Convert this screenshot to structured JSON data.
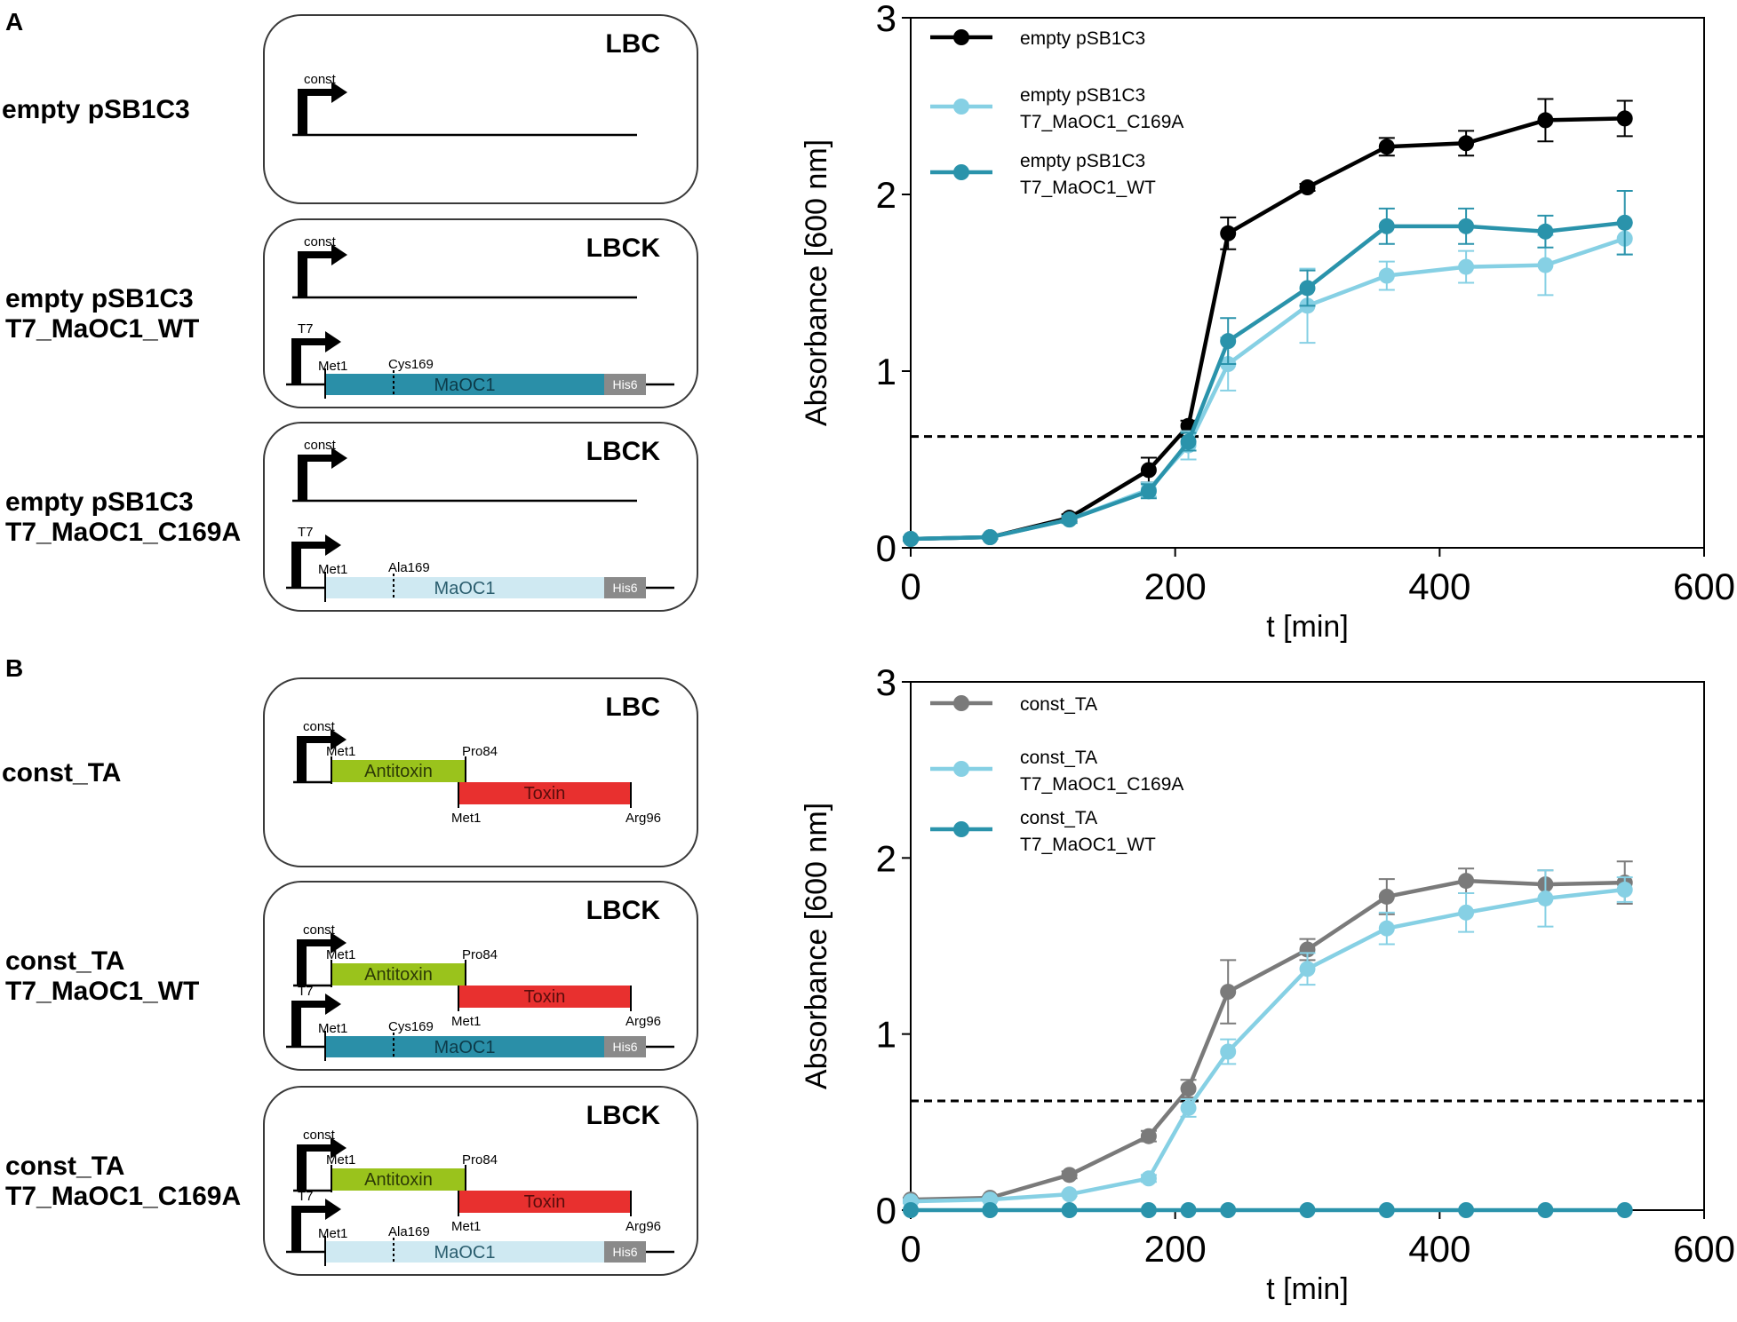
{
  "panels": {
    "A": {
      "letter": "A",
      "constructs": [
        {
          "label_lines": [
            "empty pSB1C3"
          ],
          "medium": "LBC",
          "tracks": [
            {
              "promoter": "const",
              "genes": []
            }
          ]
        },
        {
          "label_lines": [
            "empty pSB1C3",
            "T7_MaOC1_WT"
          ],
          "medium": "LBCK",
          "tracks": [
            {
              "promoter": "const",
              "genes": []
            },
            {
              "promoter": "T7",
              "genes": [
                {
                  "name": "MaOC1",
                  "start": "Met1",
                  "site": "Cys169",
                  "tag": "His6",
                  "color": "#2a8fa8",
                  "text_color": "#0d3b49"
                }
              ]
            }
          ]
        },
        {
          "label_lines": [
            "empty pSB1C3",
            "T7_MaOC1_C169A"
          ],
          "medium": "LBCK",
          "tracks": [
            {
              "promoter": "const",
              "genes": []
            },
            {
              "promoter": "T7",
              "genes": [
                {
                  "name": "MaOC1",
                  "start": "Met1",
                  "site": "Ala169",
                  "tag": "His6",
                  "color": "#cfe9f2",
                  "text_color": "#2a5d6e"
                }
              ]
            }
          ]
        }
      ]
    },
    "B": {
      "letter": "B",
      "constructs": [
        {
          "label_lines": [
            "const_TA"
          ],
          "medium": "LBC",
          "tracks": [
            {
              "promoter": "const",
              "ta": {
                "antitoxin": "Antitoxin",
                "toxin": "Toxin",
                "at_start": "Met1",
                "at_end": "Pro84",
                "tx_start": "Met1",
                "tx_end": "Arg96",
                "at_color": "#9ac31c",
                "tx_color": "#e8302f"
              }
            }
          ]
        },
        {
          "label_lines": [
            "const_TA",
            "T7_MaOC1_WT"
          ],
          "medium": "LBCK",
          "tracks": [
            {
              "promoter": "const",
              "ta": {
                "antitoxin": "Antitoxin",
                "toxin": "Toxin",
                "at_start": "Met1",
                "at_end": "Pro84",
                "tx_start": "Met1",
                "tx_end": "Arg96",
                "at_color": "#9ac31c",
                "tx_color": "#e8302f"
              }
            },
            {
              "promoter": "T7",
              "genes": [
                {
                  "name": "MaOC1",
                  "start": "Met1",
                  "site": "Cys169",
                  "tag": "His6",
                  "color": "#2a8fa8",
                  "text_color": "#0d3b49"
                }
              ]
            }
          ]
        },
        {
          "label_lines": [
            "const_TA",
            "T7_MaOC1_C169A"
          ],
          "medium": "LBCK",
          "tracks": [
            {
              "promoter": "const",
              "ta": {
                "antitoxin": "Antitoxin",
                "toxin": "Toxin",
                "at_start": "Met1",
                "at_end": "Pro84",
                "tx_start": "Met1",
                "tx_end": "Arg96",
                "at_color": "#9ac31c",
                "tx_color": "#e8302f"
              }
            },
            {
              "promoter": "T7",
              "genes": [
                {
                  "name": "MaOC1",
                  "start": "Met1",
                  "site": "Ala169",
                  "tag": "His6",
                  "color": "#cfe9f2",
                  "text_color": "#2a5d6e"
                }
              ]
            }
          ]
        }
      ]
    }
  },
  "chart_data": [
    {
      "type": "line",
      "panel": "A",
      "xlabel": "t [min]",
      "ylabel": "Absorbance [600 nm]",
      "xlim": [
        0,
        600
      ],
      "ylim": [
        0,
        3
      ],
      "xticks": [
        0,
        200,
        400,
        600
      ],
      "yticks": [
        0,
        1,
        2,
        3
      ],
      "threshold": 0.63,
      "x": [
        0,
        60,
        120,
        180,
        210,
        240,
        300,
        360,
        420,
        480,
        540
      ],
      "series": [
        {
          "name": "empty pSB1C3",
          "legend_lines": [
            "empty pSB1C3"
          ],
          "color": "#000000",
          "values": [
            0.05,
            0.06,
            0.17,
            0.44,
            0.69,
            1.78,
            2.04,
            2.27,
            2.29,
            2.42,
            2.43
          ],
          "errors": [
            0.01,
            0.01,
            0.02,
            0.07,
            0.03,
            0.09,
            0.02,
            0.05,
            0.07,
            0.12,
            0.1
          ]
        },
        {
          "name": "empty pSB1C3 T7_MaOC1_C169A",
          "legend_lines": [
            "empty pSB1C3",
            "T7_MaOC1_C169A"
          ],
          "color": "#86d0e4",
          "values": [
            0.05,
            0.06,
            0.16,
            0.33,
            0.58,
            1.04,
            1.37,
            1.54,
            1.59,
            1.6,
            1.75
          ],
          "errors": [
            0.01,
            0.01,
            0.02,
            0.04,
            0.08,
            0.15,
            0.21,
            0.08,
            0.09,
            0.17,
            0.09
          ]
        },
        {
          "name": "empty pSB1C3 T7_MaOC1_WT",
          "legend_lines": [
            "empty pSB1C3",
            "T7_MaOC1_WT"
          ],
          "color": "#2a93ab",
          "values": [
            0.05,
            0.06,
            0.16,
            0.32,
            0.6,
            1.17,
            1.47,
            1.82,
            1.82,
            1.79,
            1.84
          ],
          "errors": [
            0.01,
            0.01,
            0.02,
            0.04,
            0.05,
            0.13,
            0.1,
            0.1,
            0.1,
            0.09,
            0.18
          ]
        }
      ]
    },
    {
      "type": "line",
      "panel": "B",
      "xlabel": "t [min]",
      "ylabel": "Absorbance [600 nm]",
      "xlim": [
        0,
        600
      ],
      "ylim": [
        0,
        3
      ],
      "xticks": [
        0,
        200,
        400,
        600
      ],
      "yticks": [
        0,
        1,
        2,
        3
      ],
      "threshold": 0.62,
      "x": [
        0,
        60,
        120,
        180,
        210,
        240,
        300,
        360,
        420,
        480,
        540
      ],
      "series": [
        {
          "name": "const_TA",
          "legend_lines": [
            "const_TA"
          ],
          "color": "#7a7a7a",
          "values": [
            0.06,
            0.07,
            0.2,
            0.42,
            0.69,
            1.24,
            1.48,
            1.78,
            1.87,
            1.85,
            1.86
          ],
          "errors": [
            0.01,
            0.01,
            0.02,
            0.03,
            0.05,
            0.18,
            0.06,
            0.1,
            0.07,
            0.08,
            0.12
          ]
        },
        {
          "name": "const_TA T7_MaOC1_C169A",
          "legend_lines": [
            "const_TA",
            "T7_MaOC1_C169A"
          ],
          "color": "#86d0e4",
          "values": [
            0.05,
            0.06,
            0.09,
            0.18,
            0.58,
            0.9,
            1.37,
            1.6,
            1.69,
            1.77,
            1.82
          ],
          "errors": [
            0.01,
            0.01,
            0.01,
            0.02,
            0.05,
            0.07,
            0.09,
            0.09,
            0.11,
            0.16,
            0.07
          ]
        },
        {
          "name": "const_TA T7_MaOC1_WT",
          "legend_lines": [
            "const_TA",
            "T7_MaOC1_WT"
          ],
          "color": "#2a93ab",
          "values": [
            0.0,
            0.0,
            0.0,
            0.0,
            0.0,
            0.0,
            0.0,
            0.0,
            0.0,
            0.0,
            0.0
          ],
          "errors": [
            0,
            0,
            0,
            0,
            0,
            0,
            0,
            0,
            0,
            0,
            0
          ]
        }
      ]
    }
  ]
}
